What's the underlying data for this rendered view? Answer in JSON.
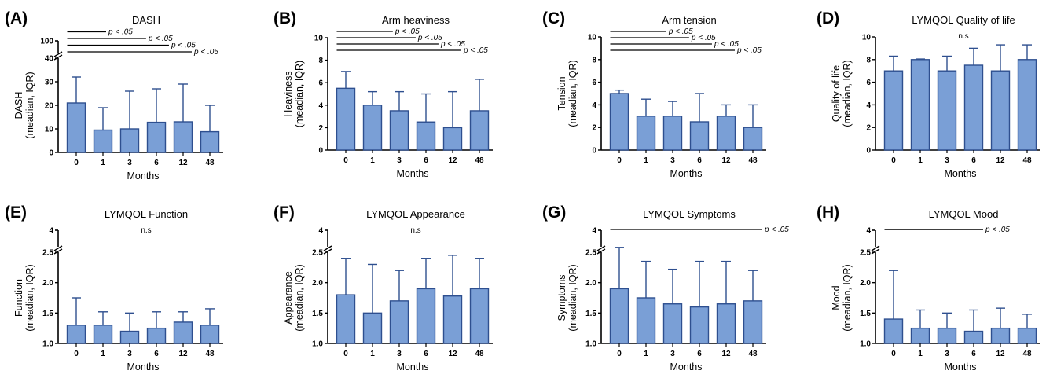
{
  "figure_colors": {
    "bar_fill": "#7a9fd6",
    "bar_stroke": "#2e4f8f",
    "axis": "#000000"
  },
  "chart_data": [
    {
      "panel": "(A)",
      "type": "bar",
      "title": "DASH",
      "ylabel": "DASH\n(meadian, IQR)",
      "xlabel": "Months",
      "categories": [
        "0",
        "1",
        "3",
        "6",
        "12",
        "48"
      ],
      "values": [
        21,
        9.5,
        10,
        12.8,
        13,
        8.8
      ],
      "errors_upper": [
        32,
        19,
        26,
        27,
        29,
        20
      ],
      "ylim": [
        0,
        40
      ],
      "yticks": [
        0,
        10,
        20,
        30,
        40
      ],
      "ytick_labels": [
        "0",
        "10",
        "20",
        "30",
        "40"
      ],
      "broken_axis_top_label": "100",
      "annotations": [
        {
          "from": "0",
          "to": "1",
          "text": "p < .05"
        },
        {
          "from": "0",
          "to": "6",
          "text": "p < .05"
        },
        {
          "from": "0",
          "to": "12",
          "text": "p < .05"
        },
        {
          "from": "0",
          "to": "48",
          "text": "p < .05"
        }
      ]
    },
    {
      "panel": "(B)",
      "type": "bar",
      "title": "Arm heaviness",
      "ylabel": "Heaviness\n(meadian, IQR)",
      "xlabel": "Months",
      "categories": [
        "0",
        "1",
        "3",
        "6",
        "12",
        "48"
      ],
      "values": [
        5.5,
        4,
        3.5,
        2.5,
        2,
        3.5
      ],
      "errors_upper": [
        7,
        5.2,
        5.2,
        5,
        5.2,
        6.3
      ],
      "ylim": [
        0,
        10
      ],
      "yticks": [
        0,
        2,
        4,
        6,
        8,
        10
      ],
      "ytick_labels": [
        "0",
        "2",
        "4",
        "6",
        "8",
        "10"
      ],
      "annotations": [
        {
          "from": "0",
          "to": "6",
          "text": "p < .05"
        },
        {
          "from": "0",
          "to": "12",
          "text": "p < .05"
        },
        {
          "from": "0",
          "to": "48",
          "text": "p < .05"
        },
        {
          "from": "0",
          "to": "48",
          "text": "p < .05"
        }
      ]
    },
    {
      "panel": "(C)",
      "type": "bar",
      "title": "Arm tension",
      "ylabel": "Tension\n(meadian, IQR)",
      "xlabel": "Months",
      "categories": [
        "0",
        "1",
        "3",
        "6",
        "12",
        "48"
      ],
      "values": [
        5,
        3,
        3,
        2.5,
        3,
        2
      ],
      "errors_upper": [
        5.3,
        4.5,
        4.3,
        5,
        4,
        4
      ],
      "ylim": [
        0,
        10
      ],
      "yticks": [
        0,
        2,
        4,
        6,
        8,
        10
      ],
      "ytick_labels": [
        "0",
        "2",
        "4",
        "6",
        "8",
        "10"
      ],
      "annotations": [
        {
          "from": "0",
          "to": "1",
          "text": "p < .05"
        },
        {
          "from": "0",
          "to": "6",
          "text": "p < .05"
        },
        {
          "from": "0",
          "to": "12",
          "text": "p < .05"
        },
        {
          "from": "0",
          "to": "48",
          "text": "p < .05"
        }
      ]
    },
    {
      "panel": "(D)",
      "type": "bar",
      "title": "LYMQOL Quality of life",
      "ylabel": "Quality of life\n(meadian, IQR)",
      "xlabel": "Months",
      "categories": [
        "0",
        "1",
        "3",
        "6",
        "12",
        "48"
      ],
      "values": [
        7,
        8,
        7,
        7.5,
        7,
        8
      ],
      "errors_upper": [
        8.3,
        8.05,
        8.3,
        9,
        9.3,
        9.3
      ],
      "ylim": [
        0,
        10
      ],
      "yticks": [
        0,
        2,
        4,
        6,
        8,
        10
      ],
      "ytick_labels": [
        "0",
        "2",
        "4",
        "6",
        "8",
        "10"
      ],
      "note": "n.s"
    },
    {
      "panel": "(E)",
      "type": "bar",
      "title": "LYMQOL Function",
      "ylabel": "Function\n(meadian, IQR)",
      "xlabel": "Months",
      "categories": [
        "0",
        "1",
        "3",
        "6",
        "12",
        "48"
      ],
      "values": [
        1.3,
        1.3,
        1.2,
        1.25,
        1.35,
        1.3
      ],
      "errors_upper": [
        1.75,
        1.52,
        1.5,
        1.52,
        1.52,
        1.57
      ],
      "ylim": [
        1.0,
        2.5
      ],
      "yticks": [
        1.0,
        1.5,
        2.0,
        2.5
      ],
      "ytick_labels": [
        "1.0",
        "1.5",
        "2.0",
        "2.5"
      ],
      "broken_axis_top_label": "4",
      "note": "n.s"
    },
    {
      "panel": "(F)",
      "type": "bar",
      "title": "LYMQOL Appearance",
      "ylabel": "Appearance\n(meadian, IQR)",
      "xlabel": "Months",
      "categories": [
        "0",
        "1",
        "3",
        "6",
        "12",
        "48"
      ],
      "values": [
        1.8,
        1.5,
        1.7,
        1.9,
        1.78,
        1.9
      ],
      "errors_upper": [
        2.4,
        2.3,
        2.2,
        2.4,
        2.45,
        2.4
      ],
      "ylim": [
        1.0,
        2.5
      ],
      "yticks": [
        1.0,
        1.5,
        2.0,
        2.5
      ],
      "ytick_labels": [
        "1.0",
        "1.5",
        "2.0",
        "2.5"
      ],
      "broken_axis_top_label": "4",
      "note": "n.s"
    },
    {
      "panel": "(G)",
      "type": "bar",
      "title": "LYMQOL Symptoms",
      "ylabel": "Symptoms\n(meadian, IQR)",
      "xlabel": "Months",
      "categories": [
        "0",
        "1",
        "3",
        "6",
        "12",
        "48"
      ],
      "values": [
        1.9,
        1.75,
        1.65,
        1.6,
        1.65,
        1.7
      ],
      "errors_upper": [
        2.58,
        2.35,
        2.22,
        2.35,
        2.35,
        2.2
      ],
      "ylim": [
        1.0,
        2.5
      ],
      "yticks": [
        1.0,
        1.5,
        2.0,
        2.5
      ],
      "ytick_labels": [
        "1.0",
        "1.5",
        "2.0",
        "2.5"
      ],
      "broken_axis_top_label": "4",
      "annotations": [
        {
          "from": "0",
          "to": "48",
          "text": "p < .05"
        }
      ]
    },
    {
      "panel": "(H)",
      "type": "bar",
      "title": "LYMQOL Mood",
      "ylabel": "Mood\n(meadian, IQR)",
      "xlabel": "Months",
      "categories": [
        "0",
        "1",
        "3",
        "6",
        "12",
        "48"
      ],
      "values": [
        1.4,
        1.25,
        1.25,
        1.2,
        1.25,
        1.25
      ],
      "errors_upper": [
        2.2,
        1.55,
        1.5,
        1.55,
        1.58,
        1.48
      ],
      "ylim": [
        1.0,
        2.5
      ],
      "yticks": [
        1.0,
        1.5,
        2.0,
        2.5
      ],
      "ytick_labels": [
        "1.0",
        "1.5",
        "2.0",
        "2.5"
      ],
      "broken_axis_top_label": "4",
      "annotations": [
        {
          "from": "0",
          "to": "6",
          "text": "p < .05"
        }
      ]
    }
  ]
}
